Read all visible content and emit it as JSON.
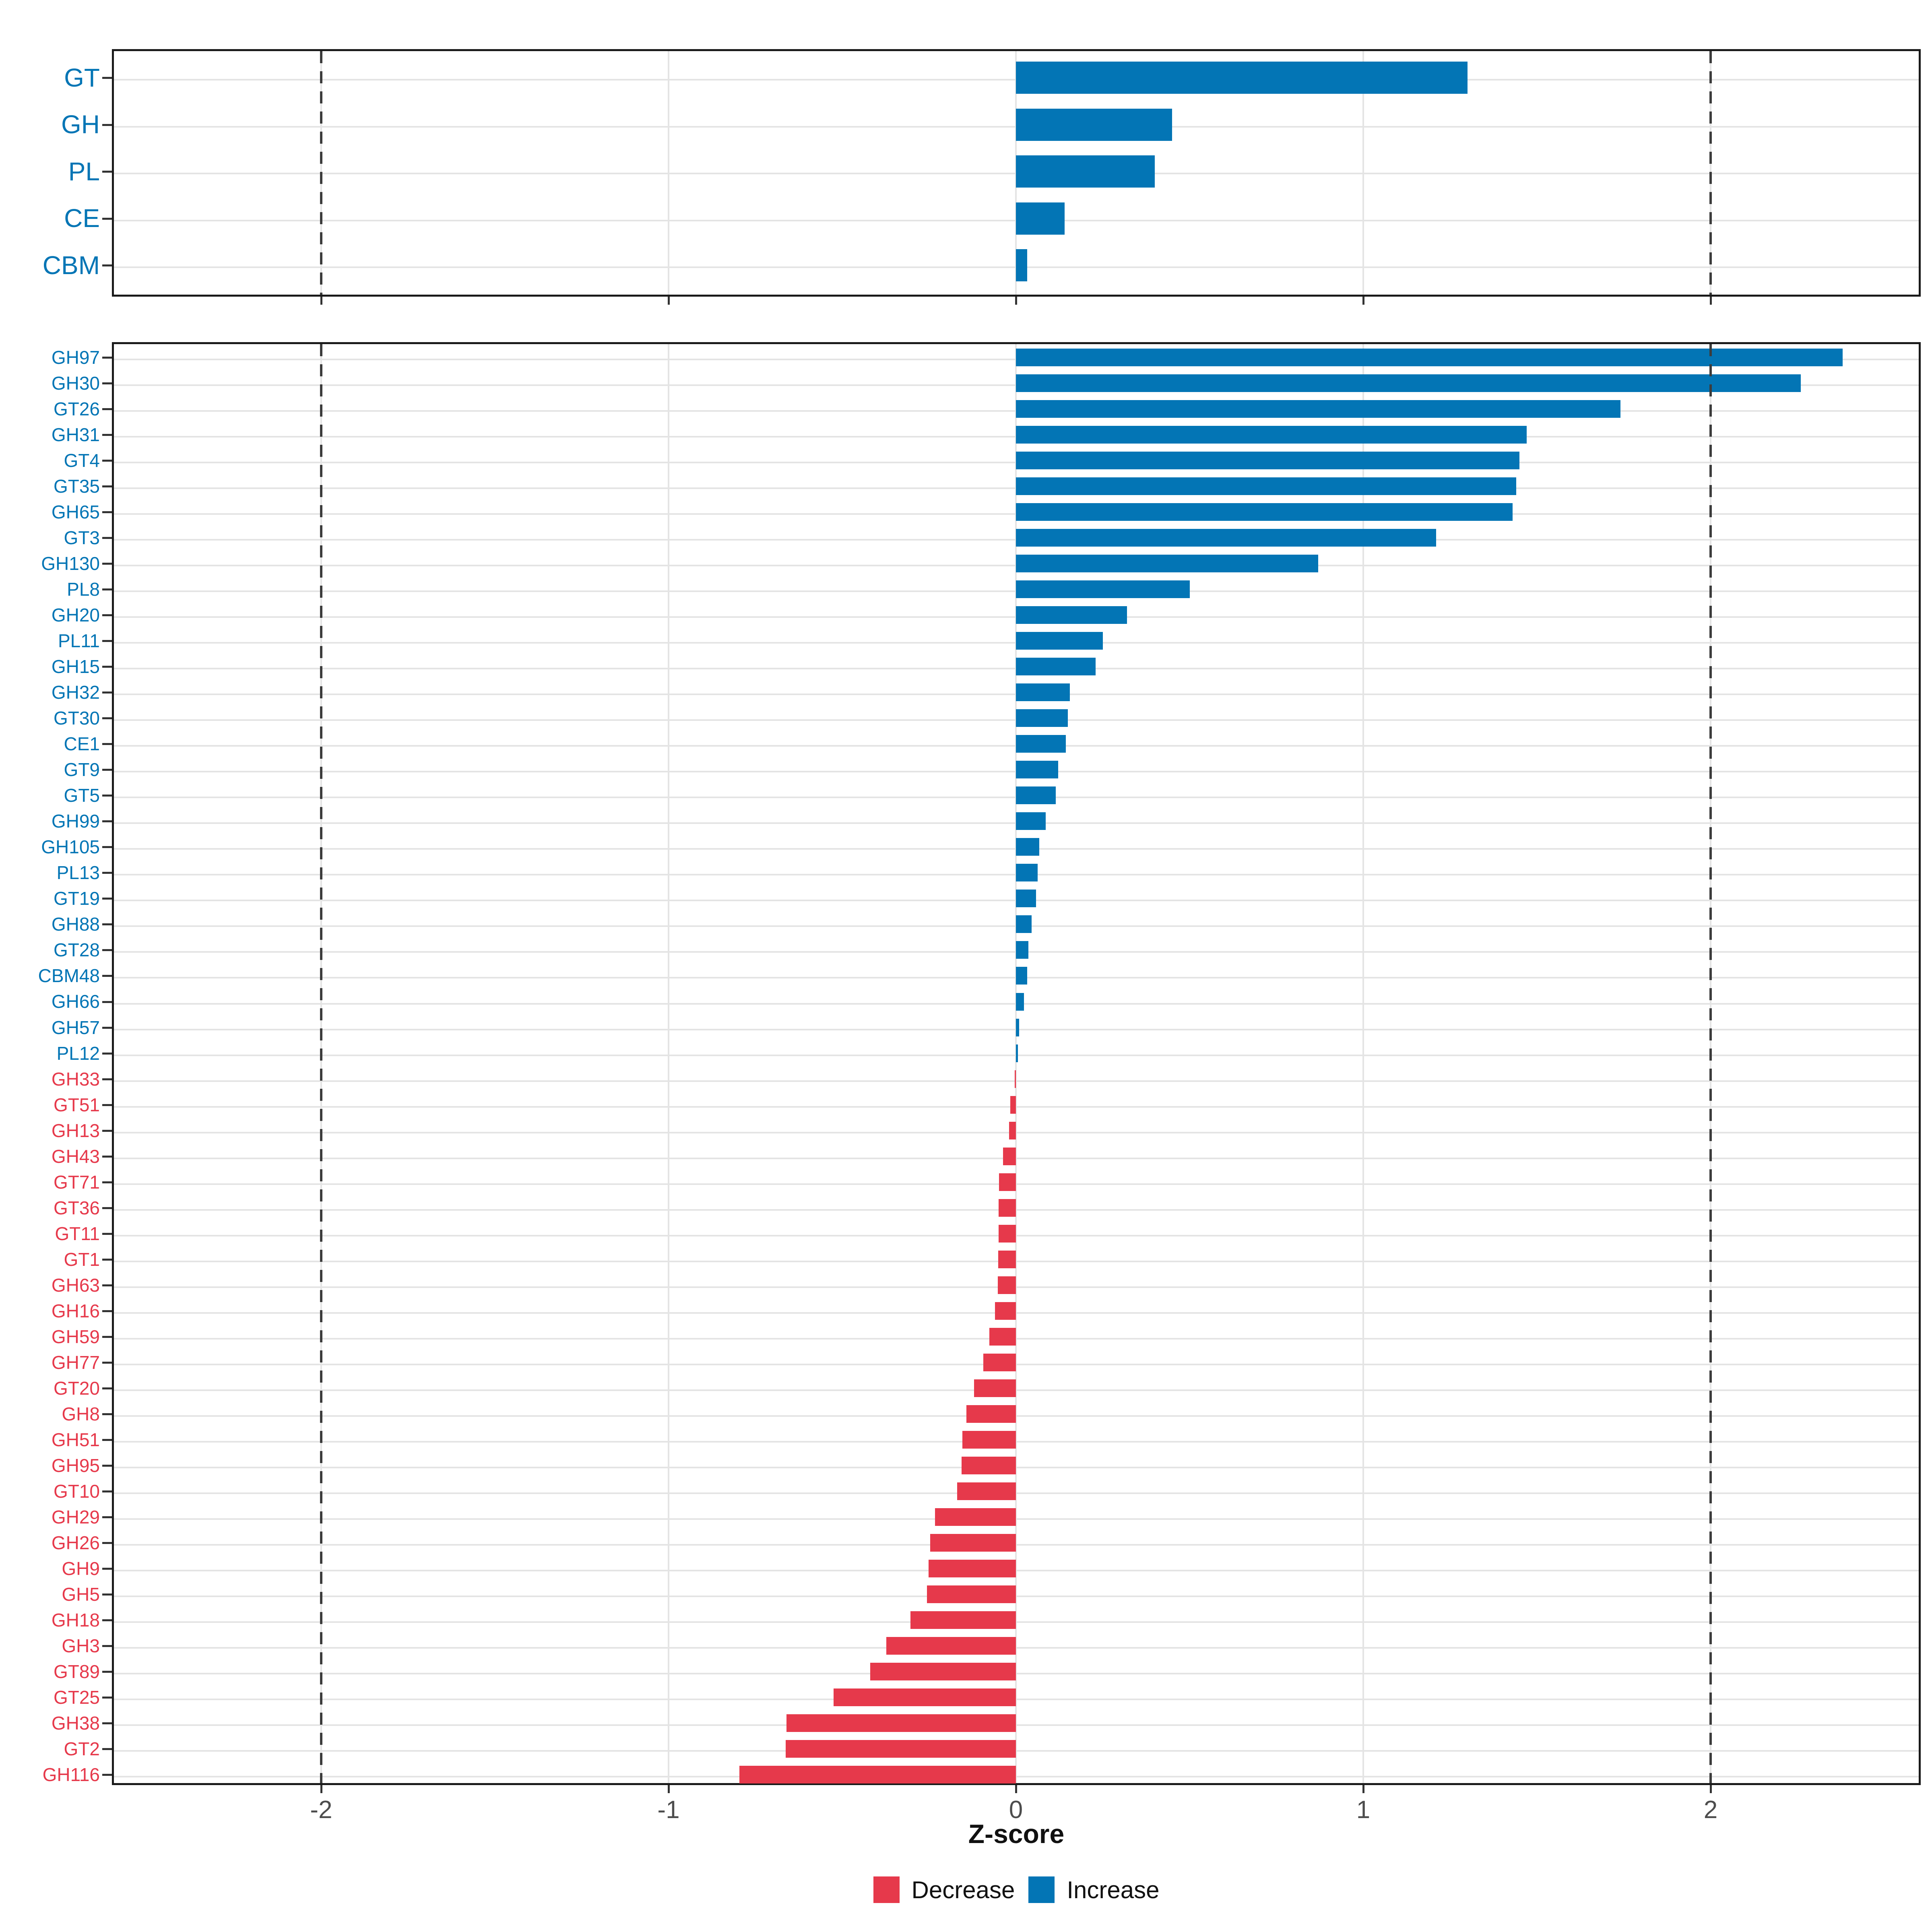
{
  "axis": {
    "xlabel": "Z-score",
    "xticks": [
      -2,
      -1,
      0,
      1,
      2
    ],
    "xtick_labels": [
      "-2",
      "-1",
      "0",
      "1",
      "2"
    ]
  },
  "legend": {
    "items": [
      {
        "label": "Decrease",
        "color": "#E6394B"
      },
      {
        "label": "Increase",
        "color": "#0375B5"
      }
    ]
  },
  "colors": {
    "increase": "#0375B5",
    "decrease": "#E6394B",
    "grid": "#e4e4e4",
    "dashed_line": "#3c3c3c",
    "axis_text": "#4d4d4d",
    "panel_border": "#1a1a1a"
  },
  "chart_data": [
    {
      "type": "bar",
      "orientation": "horizontal",
      "panel": "top",
      "title": "",
      "xlabel": "",
      "ylabel": "",
      "xlim": [
        -2.6,
        2.6
      ],
      "grid": true,
      "legend_position": "bottom",
      "xticks": [
        -2,
        -1,
        0,
        1,
        2
      ],
      "reference_lines": [
        -2,
        2
      ],
      "categories": [
        "GT",
        "GH",
        "PL",
        "CE",
        "CBM"
      ],
      "values": [
        1.3,
        0.45,
        0.4,
        0.14,
        0.032
      ]
    },
    {
      "type": "bar",
      "orientation": "horizontal",
      "panel": "bottom",
      "title": "",
      "xlabel": "Z-score",
      "ylabel": "",
      "xlim": [
        -2.6,
        2.6
      ],
      "grid": true,
      "legend_position": "bottom",
      "xticks": [
        -2,
        -1,
        0,
        1,
        2
      ],
      "reference_lines": [
        -2,
        2
      ],
      "categories": [
        "GH97",
        "GH30",
        "GT26",
        "GH31",
        "GT4",
        "GT35",
        "GH65",
        "GT3",
        "GH130",
        "PL8",
        "GH20",
        "PL11",
        "GH15",
        "GH32",
        "GT30",
        "CE1",
        "GT9",
        "GT5",
        "GH99",
        "GH105",
        "PL13",
        "GT19",
        "GH88",
        "GT28",
        "CBM48",
        "GH66",
        "GH57",
        "PL12",
        "GH33",
        "GT51",
        "GH13",
        "GH43",
        "GT71",
        "GT36",
        "GT11",
        "GT1",
        "GH63",
        "GH16",
        "GH59",
        "GH77",
        "GT20",
        "GH8",
        "GH51",
        "GH95",
        "GT10",
        "GH29",
        "GH26",
        "GH9",
        "GH5",
        "GH18",
        "GH3",
        "GT89",
        "GT25",
        "GH38",
        "GT2",
        "GH116"
      ],
      "values": [
        2.38,
        2.26,
        1.74,
        1.47,
        1.45,
        1.44,
        1.43,
        1.21,
        0.87,
        0.5,
        0.32,
        0.25,
        0.23,
        0.155,
        0.15,
        0.144,
        0.122,
        0.115,
        0.086,
        0.067,
        0.063,
        0.058,
        0.045,
        0.036,
        0.033,
        0.023,
        0.009,
        0.006,
        -0.004,
        -0.016,
        -0.02,
        -0.037,
        -0.049,
        -0.05,
        -0.05,
        -0.051,
        -0.052,
        -0.06,
        -0.077,
        -0.094,
        -0.12,
        -0.143,
        -0.154,
        -0.156,
        -0.169,
        -0.233,
        -0.247,
        -0.251,
        -0.256,
        -0.304,
        -0.373,
        -0.42,
        -0.525,
        -0.661,
        -0.663,
        -0.796
      ]
    }
  ]
}
